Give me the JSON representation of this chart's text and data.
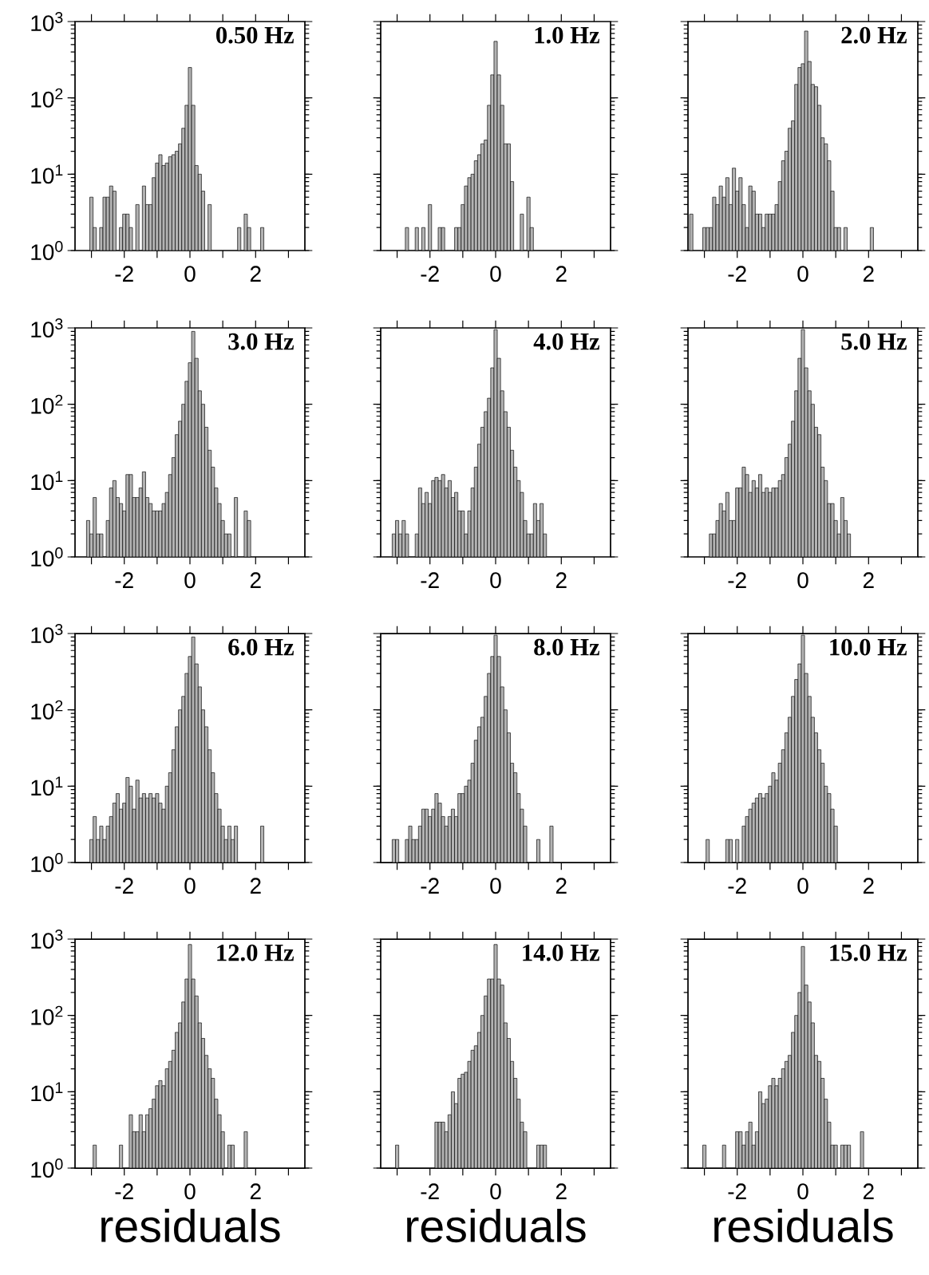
{
  "chart_data": [
    {
      "type": "histogram",
      "title": "0.50 Hz",
      "color": "#b3b3b3",
      "log": true,
      "xlim": [
        -3.5,
        3.5
      ],
      "ylim": [
        1,
        1000
      ],
      "xticks": [
        {
          "value": -3,
          "label": null
        },
        -2,
        {
          "value": -1,
          "label": null
        },
        0,
        {
          "value": 1,
          "label": null
        },
        2,
        {
          "value": 3,
          "label": null
        }
      ],
      "yticks": [
        {
          "value": 1,
          "label": "10$^{0}$"
        },
        {
          "value": 10,
          "label": "10$^{1}$"
        },
        {
          "value": 100,
          "label": "10$^{2}$"
        },
        {
          "value": 1000,
          "label": "10$^{3}$"
        }
      ],
      "bins": [
        -3.45,
        -3.35,
        -3.25,
        -3.15,
        -3.05,
        -2.95,
        -2.85,
        -2.75,
        -2.65,
        -2.55,
        -2.45,
        -2.35,
        -2.25,
        -2.15,
        -2.05,
        -1.95,
        -1.85,
        -1.75,
        -1.65,
        -1.55,
        -1.45,
        -1.35,
        -1.25,
        -1.15,
        -1.05,
        -0.95,
        -0.85,
        -0.75,
        -0.65,
        -0.55,
        -0.45,
        -0.35,
        -0.25,
        -0.15,
        -0.05,
        0.05,
        0.15,
        0.25,
        0.35,
        0.45,
        0.55,
        0.65,
        0.75,
        0.85,
        0.95,
        1.05,
        1.15,
        1.25,
        1.35,
        1.45,
        1.55,
        1.65,
        1.75,
        1.85,
        1.95,
        2.05,
        2.15,
        2.25,
        2.35,
        2.45,
        2.55,
        2.65,
        2.75,
        2.85,
        2.95,
        3.05,
        3.15,
        3.25,
        3.35,
        3.45
      ],
      "values": [
        null,
        null,
        null,
        null,
        5,
        2,
        null,
        2,
        5,
        5,
        7,
        6,
        null,
        2,
        3,
        3,
        2,
        null,
        4,
        null,
        7,
        4,
        4,
        9,
        14,
        18,
        13,
        14,
        17,
        18,
        20,
        25,
        40,
        80,
        250,
        80,
        13,
        10,
        6,
        null,
        4,
        null,
        null,
        null,
        null,
        null,
        null,
        null,
        null,
        2,
        null,
        3,
        2,
        null,
        null,
        null,
        2,
        null,
        null,
        null,
        null,
        null,
        null,
        null,
        null,
        null,
        null,
        null,
        null
      ]
    },
    {
      "type": "histogram",
      "title": "1.0 Hz",
      "color": "#b3b3b3",
      "log": true,
      "xlim": [
        -3.5,
        3.5
      ],
      "ylim": [
        1,
        1000
      ],
      "tick_labels": "x",
      "xticks": [
        {
          "value": -3,
          "label": null
        },
        -2,
        {
          "value": -1,
          "label": null
        },
        0,
        {
          "value": 1,
          "label": null
        },
        2,
        {
          "value": 3,
          "label": null
        }
      ],
      "yticks": [
        {
          "value": 1,
          "label": null
        },
        {
          "value": 10,
          "label": null
        },
        {
          "value": 100,
          "label": null
        },
        {
          "value": 1000,
          "label": null
        }
      ],
      "bins": [
        -3.45,
        -3.35,
        -3.25,
        -3.15,
        -3.05,
        -2.95,
        -2.85,
        -2.75,
        -2.65,
        -2.55,
        -2.45,
        -2.35,
        -2.25,
        -2.15,
        -2.05,
        -1.95,
        -1.85,
        -1.75,
        -1.65,
        -1.55,
        -1.45,
        -1.35,
        -1.25,
        -1.15,
        -1.05,
        -0.95,
        -0.85,
        -0.75,
        -0.65,
        -0.55,
        -0.45,
        -0.35,
        -0.25,
        -0.15,
        -0.05,
        0.05,
        0.15,
        0.25,
        0.35,
        0.45,
        0.55,
        0.65,
        0.75,
        0.85,
        0.95,
        1.05,
        1.15,
        1.25,
        1.35,
        1.45,
        1.55,
        1.65,
        1.75,
        1.85,
        1.95,
        2.05,
        2.15,
        2.25,
        2.35,
        2.45,
        2.55,
        2.65,
        2.75,
        2.85,
        2.95,
        3.05,
        3.15,
        3.25,
        3.35,
        3.45
      ],
      "values": [
        null,
        null,
        null,
        null,
        null,
        null,
        null,
        2,
        null,
        null,
        2,
        null,
        2,
        null,
        4,
        null,
        null,
        2,
        2,
        null,
        null,
        null,
        2,
        2,
        4,
        7,
        9,
        10,
        15,
        18,
        25,
        28,
        80,
        200,
        550,
        200,
        80,
        25,
        25,
        8,
        null,
        null,
        3,
        null,
        5,
        2,
        null,
        null,
        null,
        null,
        null,
        null,
        null,
        null,
        null,
        null,
        null,
        null,
        null,
        null,
        null,
        null,
        null,
        null,
        null,
        null,
        null,
        null,
        null
      ]
    },
    {
      "type": "histogram",
      "title": "2.0 Hz",
      "color": "#b3b3b3",
      "log": true,
      "xlim": [
        -3.5,
        3.5
      ],
      "ylim": [
        1,
        1000
      ],
      "tick_labels": "x",
      "xticks": [
        {
          "value": -3,
          "label": null
        },
        -2,
        {
          "value": -1,
          "label": null
        },
        0,
        {
          "value": 1,
          "label": null
        },
        2,
        {
          "value": 3,
          "label": null
        }
      ],
      "yticks": [
        {
          "value": 1,
          "label": null
        },
        {
          "value": 10,
          "label": null
        },
        {
          "value": 100,
          "label": null
        },
        {
          "value": 1000,
          "label": null
        }
      ],
      "bins": [
        -3.45,
        -3.35,
        -3.25,
        -3.15,
        -3.05,
        -2.95,
        -2.85,
        -2.75,
        -2.65,
        -2.55,
        -2.45,
        -2.35,
        -2.25,
        -2.15,
        -2.05,
        -1.95,
        -1.85,
        -1.75,
        -1.65,
        -1.55,
        -1.45,
        -1.35,
        -1.25,
        -1.15,
        -1.05,
        -0.95,
        -0.85,
        -0.75,
        -0.65,
        -0.55,
        -0.45,
        -0.35,
        -0.25,
        -0.15,
        -0.05,
        0.05,
        0.15,
        0.25,
        0.35,
        0.45,
        0.55,
        0.65,
        0.75,
        0.85,
        0.95,
        1.05,
        1.15,
        1.25,
        1.35,
        1.45,
        1.55,
        1.65,
        1.75,
        1.85,
        1.95,
        2.05,
        2.15,
        2.25,
        2.35,
        2.45,
        2.55,
        2.65,
        2.75,
        2.85,
        2.95,
        3.05,
        3.15,
        3.25,
        3.35,
        3.45
      ],
      "values": [
        3,
        null,
        null,
        null,
        2,
        2,
        2,
        5,
        4,
        7,
        5,
        9,
        4,
        12,
        6,
        9,
        4,
        2,
        7,
        6,
        3,
        3,
        2,
        3,
        3,
        3,
        4,
        8,
        15,
        20,
        40,
        50,
        150,
        250,
        280,
        750,
        300,
        150,
        140,
        80,
        30,
        25,
        15,
        6,
        2,
        2,
        null,
        2,
        null,
        null,
        null,
        null,
        null,
        null,
        null,
        2,
        null,
        null,
        null,
        null,
        null,
        null,
        null,
        null,
        null,
        null,
        null,
        null,
        null
      ]
    },
    {
      "type": "histogram",
      "title": "3.0 Hz",
      "color": "#b3b3b3",
      "log": true,
      "xlim": [
        -3.5,
        3.5
      ],
      "ylim": [
        1,
        1000
      ],
      "xticks": [
        {
          "value": -3,
          "label": null
        },
        -2,
        {
          "value": -1,
          "label": null
        },
        0,
        {
          "value": 1,
          "label": null
        },
        2,
        {
          "value": 3,
          "label": null
        }
      ],
      "yticks": [
        {
          "value": 1,
          "label": "10$^{0}$"
        },
        {
          "value": 10,
          "label": "10$^{1}$"
        },
        {
          "value": 100,
          "label": "10$^{2}$"
        },
        {
          "value": 1000,
          "label": "10$^{3}$"
        }
      ],
      "bins": [
        -3.45,
        -3.35,
        -3.25,
        -3.15,
        -3.05,
        -2.95,
        -2.85,
        -2.75,
        -2.65,
        -2.55,
        -2.45,
        -2.35,
        -2.25,
        -2.15,
        -2.05,
        -1.95,
        -1.85,
        -1.75,
        -1.65,
        -1.55,
        -1.45,
        -1.35,
        -1.25,
        -1.15,
        -1.05,
        -0.95,
        -0.85,
        -0.75,
        -0.65,
        -0.55,
        -0.45,
        -0.35,
        -0.25,
        -0.15,
        -0.05,
        0.05,
        0.15,
        0.25,
        0.35,
        0.45,
        0.55,
        0.65,
        0.75,
        0.85,
        0.95,
        1.05,
        1.15,
        1.25,
        1.35,
        1.45,
        1.55,
        1.65,
        1.75,
        1.85,
        1.95,
        2.05,
        2.15,
        2.25,
        2.35,
        2.45,
        2.55,
        2.65,
        2.75,
        2.85,
        2.95,
        3.05,
        3.15,
        3.25,
        3.35,
        3.45
      ],
      "values": [
        null,
        null,
        null,
        3,
        2,
        6,
        2,
        2,
        null,
        3,
        8,
        10,
        6,
        5,
        4,
        12,
        12,
        6,
        6,
        8,
        13,
        6,
        5,
        4,
        4,
        4,
        5,
        7,
        12,
        20,
        40,
        60,
        100,
        200,
        350,
        900,
        400,
        150,
        100,
        50,
        25,
        15,
        8,
        5,
        3,
        2,
        2,
        null,
        6,
        null,
        null,
        4,
        3,
        null,
        null,
        null,
        null,
        null,
        null,
        null,
        null,
        null,
        null,
        null,
        null,
        null,
        null,
        null,
        null
      ]
    },
    {
      "type": "histogram",
      "title": "4.0 Hz",
      "color": "#b3b3b3",
      "log": true,
      "xlim": [
        -3.5,
        3.5
      ],
      "ylim": [
        1,
        1000
      ],
      "tick_labels": "x",
      "xticks": [
        {
          "value": -3,
          "label": null
        },
        -2,
        {
          "value": -1,
          "label": null
        },
        0,
        {
          "value": 1,
          "label": null
        },
        2,
        {
          "value": 3,
          "label": null
        }
      ],
      "yticks": [
        {
          "value": 1,
          "label": null
        },
        {
          "value": 10,
          "label": null
        },
        {
          "value": 100,
          "label": null
        },
        {
          "value": 1000,
          "label": null
        }
      ],
      "bins": [
        -3.45,
        -3.35,
        -3.25,
        -3.15,
        -3.05,
        -2.95,
        -2.85,
        -2.75,
        -2.65,
        -2.55,
        -2.45,
        -2.35,
        -2.25,
        -2.15,
        -2.05,
        -1.95,
        -1.85,
        -1.75,
        -1.65,
        -1.55,
        -1.45,
        -1.35,
        -1.25,
        -1.15,
        -1.05,
        -0.95,
        -0.85,
        -0.75,
        -0.65,
        -0.55,
        -0.45,
        -0.35,
        -0.25,
        -0.15,
        -0.05,
        0.05,
        0.15,
        0.25,
        0.35,
        0.45,
        0.55,
        0.65,
        0.75,
        0.85,
        0.95,
        1.05,
        1.15,
        1.25,
        1.35,
        1.45,
        1.55,
        1.65,
        1.75,
        1.85,
        1.95,
        2.05,
        2.15,
        2.25,
        2.35,
        2.45,
        2.55,
        2.65,
        2.75,
        2.85,
        2.95,
        3.05,
        3.15,
        3.25,
        3.35,
        3.45
      ],
      "values": [
        null,
        null,
        null,
        2,
        3,
        2,
        3,
        2,
        null,
        null,
        2,
        8,
        5,
        7,
        5,
        10,
        11,
        10,
        12,
        8,
        10,
        6,
        7,
        4,
        4,
        2,
        4,
        8,
        15,
        30,
        50,
        80,
        120,
        300,
        950,
        400,
        150,
        80,
        50,
        25,
        15,
        10,
        7,
        3,
        2,
        2,
        5,
        3,
        5,
        2,
        null,
        null,
        null,
        null,
        null,
        null,
        null,
        null,
        null,
        null,
        null,
        null,
        null,
        null,
        null,
        null,
        null,
        null,
        null
      ]
    },
    {
      "type": "histogram",
      "title": "5.0 Hz",
      "color": "#b3b3b3",
      "log": true,
      "xlim": [
        -3.5,
        3.5
      ],
      "ylim": [
        1,
        1000
      ],
      "tick_labels": "x",
      "xticks": [
        {
          "value": -3,
          "label": null
        },
        -2,
        {
          "value": -1,
          "label": null
        },
        0,
        {
          "value": 1,
          "label": null
        },
        2,
        {
          "value": 3,
          "label": null
        }
      ],
      "yticks": [
        {
          "value": 1,
          "label": null
        },
        {
          "value": 10,
          "label": null
        },
        {
          "value": 100,
          "label": null
        },
        {
          "value": 1000,
          "label": null
        }
      ],
      "bins": [
        -3.45,
        -3.35,
        -3.25,
        -3.15,
        -3.05,
        -2.95,
        -2.85,
        -2.75,
        -2.65,
        -2.55,
        -2.45,
        -2.35,
        -2.25,
        -2.15,
        -2.05,
        -1.95,
        -1.85,
        -1.75,
        -1.65,
        -1.55,
        -1.45,
        -1.35,
        -1.25,
        -1.15,
        -1.05,
        -0.95,
        -0.85,
        -0.75,
        -0.65,
        -0.55,
        -0.45,
        -0.35,
        -0.25,
        -0.15,
        -0.05,
        0.05,
        0.15,
        0.25,
        0.35,
        0.45,
        0.55,
        0.65,
        0.75,
        0.85,
        0.95,
        1.05,
        1.15,
        1.25,
        1.35,
        1.45,
        1.55,
        1.65,
        1.75,
        1.85,
        1.95,
        2.05,
        2.15,
        2.25,
        2.35,
        2.45,
        2.55,
        2.65,
        2.75,
        2.85,
        2.95,
        3.05,
        3.15,
        3.25,
        3.35,
        3.45
      ],
      "values": [
        null,
        null,
        null,
        null,
        null,
        null,
        2,
        2,
        3,
        5,
        4,
        7,
        3,
        3,
        8,
        8,
        15,
        12,
        7,
        10,
        8,
        12,
        7,
        8,
        7,
        8,
        8,
        10,
        12,
        20,
        30,
        60,
        150,
        400,
        950,
        300,
        150,
        100,
        50,
        40,
        15,
        10,
        5,
        5,
        3,
        2,
        6,
        3,
        2,
        null,
        null,
        null,
        null,
        null,
        null,
        null,
        null,
        null,
        null,
        null,
        null,
        null,
        null,
        null,
        null,
        null,
        null,
        null,
        null
      ]
    },
    {
      "type": "histogram",
      "title": "6.0 Hz",
      "color": "#b3b3b3",
      "log": true,
      "xlim": [
        -3.5,
        3.5
      ],
      "ylim": [
        1,
        1000
      ],
      "xticks": [
        {
          "value": -3,
          "label": null
        },
        -2,
        {
          "value": -1,
          "label": null
        },
        0,
        {
          "value": 1,
          "label": null
        },
        2,
        {
          "value": 3,
          "label": null
        }
      ],
      "yticks": [
        {
          "value": 1,
          "label": "10$^{0}$"
        },
        {
          "value": 10,
          "label": "10$^{1}$"
        },
        {
          "value": 100,
          "label": "10$^{2}$"
        },
        {
          "value": 1000,
          "label": "10$^{3}$"
        }
      ],
      "bins": [
        -3.45,
        -3.35,
        -3.25,
        -3.15,
        -3.05,
        -2.95,
        -2.85,
        -2.75,
        -2.65,
        -2.55,
        -2.45,
        -2.35,
        -2.25,
        -2.15,
        -2.05,
        -1.95,
        -1.85,
        -1.75,
        -1.65,
        -1.55,
        -1.45,
        -1.35,
        -1.25,
        -1.15,
        -1.05,
        -0.95,
        -0.85,
        -0.75,
        -0.65,
        -0.55,
        -0.45,
        -0.35,
        -0.25,
        -0.15,
        -0.05,
        0.05,
        0.15,
        0.25,
        0.35,
        0.45,
        0.55,
        0.65,
        0.75,
        0.85,
        0.95,
        1.05,
        1.15,
        1.25,
        1.35,
        1.45,
        1.55,
        1.65,
        1.75,
        1.85,
        1.95,
        2.05,
        2.15,
        2.25,
        2.35,
        2.45,
        2.55,
        2.65,
        2.75,
        2.85,
        2.95,
        3.05,
        3.15,
        3.25,
        3.35,
        3.45
      ],
      "values": [
        null,
        null,
        null,
        null,
        2,
        4,
        2,
        3,
        2,
        3,
        4,
        6,
        8,
        5,
        6,
        13,
        10,
        5,
        12,
        7,
        8,
        7,
        8,
        7,
        8,
        6,
        5,
        10,
        15,
        30,
        60,
        100,
        150,
        300,
        500,
        900,
        400,
        200,
        100,
        60,
        30,
        15,
        8,
        5,
        3,
        2,
        3,
        2,
        3,
        null,
        null,
        null,
        null,
        null,
        null,
        null,
        3,
        null,
        null,
        null,
        null,
        null,
        null,
        null,
        null,
        null,
        null,
        null,
        null
      ]
    },
    {
      "type": "histogram",
      "title": "8.0 Hz",
      "color": "#b3b3b3",
      "log": true,
      "xlim": [
        -3.5,
        3.5
      ],
      "ylim": [
        1,
        1000
      ],
      "tick_labels": "x",
      "xticks": [
        {
          "value": -3,
          "label": null
        },
        -2,
        {
          "value": -1,
          "label": null
        },
        0,
        {
          "value": 1,
          "label": null
        },
        2,
        {
          "value": 3,
          "label": null
        }
      ],
      "yticks": [
        {
          "value": 1,
          "label": null
        },
        {
          "value": 10,
          "label": null
        },
        {
          "value": 100,
          "label": null
        },
        {
          "value": 1000,
          "label": null
        }
      ],
      "bins": [
        -3.45,
        -3.35,
        -3.25,
        -3.15,
        -3.05,
        -2.95,
        -2.85,
        -2.75,
        -2.65,
        -2.55,
        -2.45,
        -2.35,
        -2.25,
        -2.15,
        -2.05,
        -1.95,
        -1.85,
        -1.75,
        -1.65,
        -1.55,
        -1.45,
        -1.35,
        -1.25,
        -1.15,
        -1.05,
        -0.95,
        -0.85,
        -0.75,
        -0.65,
        -0.55,
        -0.45,
        -0.35,
        -0.25,
        -0.15,
        -0.05,
        0.05,
        0.15,
        0.25,
        0.35,
        0.45,
        0.55,
        0.65,
        0.75,
        0.85,
        0.95,
        1.05,
        1.15,
        1.25,
        1.35,
        1.45,
        1.55,
        1.65,
        1.75,
        1.85,
        1.95,
        2.05,
        2.15,
        2.25,
        2.35,
        2.45,
        2.55,
        2.65,
        2.75,
        2.85,
        2.95,
        3.05,
        3.15,
        3.25,
        3.35,
        3.45
      ],
      "values": [
        null,
        null,
        null,
        2,
        2,
        null,
        null,
        2,
        3,
        2,
        2,
        3,
        5,
        5,
        4,
        5,
        8,
        6,
        4,
        3,
        4,
        5,
        4,
        8,
        8,
        10,
        12,
        20,
        40,
        60,
        80,
        150,
        300,
        500,
        950,
        500,
        200,
        100,
        50,
        20,
        15,
        8,
        5,
        3,
        null,
        null,
        null,
        2,
        null,
        null,
        null,
        3,
        null,
        null,
        null,
        null,
        null,
        null,
        null,
        null,
        null,
        null,
        null,
        null,
        null,
        null,
        null,
        null,
        null
      ]
    },
    {
      "type": "histogram",
      "title": "10.0 Hz",
      "color": "#b3b3b3",
      "log": true,
      "xlim": [
        -3.5,
        3.5
      ],
      "ylim": [
        1,
        1000
      ],
      "tick_labels": "x",
      "xticks": [
        {
          "value": -3,
          "label": null
        },
        -2,
        {
          "value": -1,
          "label": null
        },
        0,
        {
          "value": 1,
          "label": null
        },
        2,
        {
          "value": 3,
          "label": null
        }
      ],
      "yticks": [
        {
          "value": 1,
          "label": null
        },
        {
          "value": 10,
          "label": null
        },
        {
          "value": 100,
          "label": null
        },
        {
          "value": 1000,
          "label": null
        }
      ],
      "bins": [
        -3.45,
        -3.35,
        -3.25,
        -3.15,
        -3.05,
        -2.95,
        -2.85,
        -2.75,
        -2.65,
        -2.55,
        -2.45,
        -2.35,
        -2.25,
        -2.15,
        -2.05,
        -1.95,
        -1.85,
        -1.75,
        -1.65,
        -1.55,
        -1.45,
        -1.35,
        -1.25,
        -1.15,
        -1.05,
        -0.95,
        -0.85,
        -0.75,
        -0.65,
        -0.55,
        -0.45,
        -0.35,
        -0.25,
        -0.15,
        -0.05,
        0.05,
        0.15,
        0.25,
        0.35,
        0.45,
        0.55,
        0.65,
        0.75,
        0.85,
        0.95,
        1.05,
        1.15,
        1.25,
        1.35,
        1.45,
        1.55,
        1.65,
        1.75,
        1.85,
        1.95,
        2.05,
        2.15,
        2.25,
        2.35,
        2.45,
        2.55,
        2.65,
        2.75,
        2.85,
        2.95,
        3.05,
        3.15,
        3.25,
        3.35,
        3.45
      ],
      "values": [
        null,
        null,
        null,
        null,
        null,
        2,
        null,
        null,
        null,
        null,
        null,
        2,
        2,
        null,
        2,
        null,
        3,
        4,
        5,
        6,
        7,
        8,
        7,
        8,
        10,
        15,
        12,
        20,
        30,
        50,
        80,
        150,
        250,
        400,
        950,
        300,
        150,
        80,
        50,
        30,
        20,
        10,
        8,
        5,
        3,
        null,
        null,
        null,
        null,
        null,
        null,
        null,
        null,
        null,
        null,
        null,
        null,
        null,
        null,
        null,
        null,
        null,
        null,
        null,
        null,
        null,
        null,
        null,
        null
      ]
    },
    {
      "type": "histogram",
      "title": "12.0 Hz",
      "xlabel": "residuals",
      "color": "#b3b3b3",
      "log": true,
      "xlim": [
        -3.5,
        3.5
      ],
      "ylim": [
        1,
        1000
      ],
      "xticks": [
        {
          "value": -3,
          "label": null
        },
        -2,
        {
          "value": -1,
          "label": null
        },
        0,
        {
          "value": 1,
          "label": null
        },
        2,
        {
          "value": 3,
          "label": null
        }
      ],
      "yticks": [
        {
          "value": 1,
          "label": "10$^{0}$"
        },
        {
          "value": 10,
          "label": "10$^{1}$"
        },
        {
          "value": 100,
          "label": "10$^{2}$"
        },
        {
          "value": 1000,
          "label": "10$^{3}$"
        }
      ],
      "bins": [
        -3.45,
        -3.35,
        -3.25,
        -3.15,
        -3.05,
        -2.95,
        -2.85,
        -2.75,
        -2.65,
        -2.55,
        -2.45,
        -2.35,
        -2.25,
        -2.15,
        -2.05,
        -1.95,
        -1.85,
        -1.75,
        -1.65,
        -1.55,
        -1.45,
        -1.35,
        -1.25,
        -1.15,
        -1.05,
        -0.95,
        -0.85,
        -0.75,
        -0.65,
        -0.55,
        -0.45,
        -0.35,
        -0.25,
        -0.15,
        -0.05,
        0.05,
        0.15,
        0.25,
        0.35,
        0.45,
        0.55,
        0.65,
        0.75,
        0.85,
        0.95,
        1.05,
        1.15,
        1.25,
        1.35,
        1.45,
        1.55,
        1.65,
        1.75,
        1.85,
        1.95,
        2.05,
        2.15,
        2.25,
        2.35,
        2.45,
        2.55,
        2.65,
        2.75,
        2.85,
        2.95,
        3.05,
        3.15,
        3.25,
        3.35,
        3.45
      ],
      "values": [
        null,
        null,
        null,
        null,
        null,
        2,
        null,
        null,
        null,
        null,
        null,
        null,
        null,
        2,
        null,
        null,
        5,
        3,
        3,
        5,
        3,
        5,
        6,
        8,
        12,
        14,
        12,
        20,
        25,
        35,
        60,
        80,
        150,
        300,
        850,
        300,
        180,
        80,
        50,
        30,
        20,
        15,
        8,
        5,
        3,
        null,
        2,
        2,
        null,
        null,
        null,
        3,
        null,
        null,
        null,
        null,
        null,
        null,
        null,
        null,
        null,
        null,
        null,
        null,
        null,
        null,
        null,
        null,
        null
      ]
    },
    {
      "type": "histogram",
      "title": "14.0 Hz",
      "xlabel": "residuals",
      "color": "#b3b3b3",
      "log": true,
      "xlim": [
        -3.5,
        3.5
      ],
      "ylim": [
        1,
        1000
      ],
      "tick_labels": "x",
      "xticks": [
        {
          "value": -3,
          "label": null
        },
        -2,
        {
          "value": -1,
          "label": null
        },
        0,
        {
          "value": 1,
          "label": null
        },
        2,
        {
          "value": 3,
          "label": null
        }
      ],
      "yticks": [
        {
          "value": 1,
          "label": null
        },
        {
          "value": 10,
          "label": null
        },
        {
          "value": 100,
          "label": null
        },
        {
          "value": 1000,
          "label": null
        }
      ],
      "bins": [
        -3.45,
        -3.35,
        -3.25,
        -3.15,
        -3.05,
        -2.95,
        -2.85,
        -2.75,
        -2.65,
        -2.55,
        -2.45,
        -2.35,
        -2.25,
        -2.15,
        -2.05,
        -1.95,
        -1.85,
        -1.75,
        -1.65,
        -1.55,
        -1.45,
        -1.35,
        -1.25,
        -1.15,
        -1.05,
        -0.95,
        -0.85,
        -0.75,
        -0.65,
        -0.55,
        -0.45,
        -0.35,
        -0.25,
        -0.15,
        -0.05,
        0.05,
        0.15,
        0.25,
        0.35,
        0.45,
        0.55,
        0.65,
        0.75,
        0.85,
        0.95,
        1.05,
        1.15,
        1.25,
        1.35,
        1.45,
        1.55,
        1.65,
        1.75,
        1.85,
        1.95,
        2.05,
        2.15,
        2.25,
        2.35,
        2.45,
        2.55,
        2.65,
        2.75,
        2.85,
        2.95,
        3.05,
        3.15,
        3.25,
        3.35,
        3.45
      ],
      "values": [
        null,
        null,
        null,
        null,
        2,
        null,
        null,
        null,
        null,
        null,
        null,
        null,
        null,
        null,
        null,
        null,
        4,
        4,
        4,
        3,
        5,
        10,
        7,
        15,
        17,
        18,
        25,
        35,
        40,
        60,
        100,
        180,
        300,
        300,
        850,
        300,
        250,
        80,
        50,
        25,
        15,
        8,
        4,
        3,
        null,
        null,
        null,
        2,
        2,
        2,
        null,
        null,
        null,
        null,
        null,
        null,
        null,
        null,
        null,
        null,
        null,
        null,
        null,
        null,
        null,
        null,
        null,
        null,
        null
      ]
    },
    {
      "type": "histogram",
      "title": "15.0 Hz",
      "xlabel": "residuals",
      "color": "#b3b3b3",
      "log": true,
      "xlim": [
        -3.5,
        3.5
      ],
      "ylim": [
        1,
        1000
      ],
      "tick_labels": "x",
      "xticks": [
        {
          "value": -3,
          "label": null
        },
        -2,
        {
          "value": -1,
          "label": null
        },
        0,
        {
          "value": 1,
          "label": null
        },
        2,
        {
          "value": 3,
          "label": null
        }
      ],
      "yticks": [
        {
          "value": 1,
          "label": null
        },
        {
          "value": 10,
          "label": null
        },
        {
          "value": 100,
          "label": null
        },
        {
          "value": 1000,
          "label": null
        }
      ],
      "bins": [
        -3.45,
        -3.35,
        -3.25,
        -3.15,
        -3.05,
        -2.95,
        -2.85,
        -2.75,
        -2.65,
        -2.55,
        -2.45,
        -2.35,
        -2.25,
        -2.15,
        -2.05,
        -1.95,
        -1.85,
        -1.75,
        -1.65,
        -1.55,
        -1.45,
        -1.35,
        -1.25,
        -1.15,
        -1.05,
        -0.95,
        -0.85,
        -0.75,
        -0.65,
        -0.55,
        -0.45,
        -0.35,
        -0.25,
        -0.15,
        -0.05,
        0.05,
        0.15,
        0.25,
        0.35,
        0.45,
        0.55,
        0.65,
        0.75,
        0.85,
        0.95,
        1.05,
        1.15,
        1.25,
        1.35,
        1.45,
        1.55,
        1.65,
        1.75,
        1.85,
        1.95,
        2.05,
        2.15,
        2.25,
        2.35,
        2.45,
        2.55,
        2.65,
        2.75,
        2.85,
        2.95,
        3.05,
        3.15,
        3.25,
        3.35,
        3.45
      ],
      "values": [
        null,
        null,
        null,
        null,
        2,
        null,
        null,
        null,
        null,
        null,
        2,
        null,
        null,
        null,
        3,
        3,
        2,
        3,
        4,
        2,
        3,
        10,
        7,
        8,
        12,
        15,
        12,
        15,
        20,
        25,
        30,
        60,
        100,
        200,
        800,
        250,
        150,
        80,
        30,
        25,
        15,
        8,
        4,
        2,
        2,
        null,
        2,
        2,
        2,
        null,
        null,
        null,
        3,
        null,
        null,
        null,
        null,
        null,
        null,
        null,
        null,
        null,
        null,
        null,
        null,
        null,
        null,
        null,
        null
      ]
    }
  ]
}
